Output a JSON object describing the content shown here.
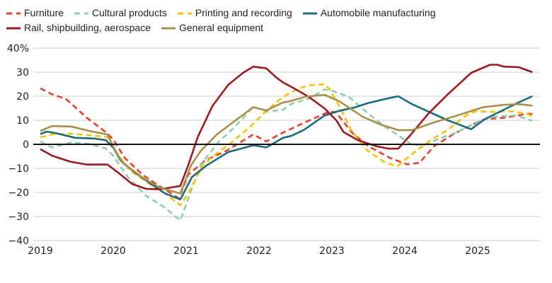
{
  "chart_data": {
    "type": "line",
    "title": "",
    "xlabel": "",
    "ylabel": "",
    "xlim": [
      2019,
      2025.85
    ],
    "ylim": [
      -40,
      40
    ],
    "grid": true,
    "legend_position": "top",
    "x_ticks": [
      "2019",
      "2020",
      "2021",
      "2022",
      "2023",
      "2024",
      "2025"
    ],
    "y_ticks": [
      {
        "value": 40,
        "label": "40%"
      },
      {
        "value": 30,
        "label": "30"
      },
      {
        "value": 20,
        "label": "20"
      },
      {
        "value": 10,
        "label": "10"
      },
      {
        "value": 0,
        "label": "0"
      },
      {
        "value": -10,
        "label": "−10"
      },
      {
        "value": -20,
        "label": "−20"
      },
      {
        "value": -30,
        "label": "−30"
      },
      {
        "value": -40,
        "label": "−40"
      }
    ],
    "series": [
      {
        "name": "Furniture",
        "color": "#e8412f",
        "style": "dashed",
        "x": [
          2019.0,
          2019.16,
          2019.35,
          2019.64,
          2019.9,
          2020.0,
          2020.16,
          2020.4,
          2020.64,
          2020.9,
          2021.03,
          2021.26,
          2021.55,
          2021.92,
          2022.1,
          2022.33,
          2022.62,
          2022.95,
          2023.05,
          2023.27,
          2023.5,
          2023.8,
          2024.03,
          2024.2,
          2024.4,
          2024.66,
          2024.91,
          2025.1,
          2025.36,
          2025.69,
          2025.75
        ],
        "y": [
          23.3,
          20.8,
          18.9,
          11,
          5,
          2,
          -5.7,
          -12.6,
          -17.5,
          -22.4,
          -12.6,
          -6.7,
          -2.75,
          4.1,
          1.2,
          4.9,
          9,
          13.4,
          13.5,
          5.1,
          -0.8,
          -5.7,
          -8.3,
          -7.7,
          -0.8,
          4.1,
          8,
          10.5,
          11,
          12.7,
          12.6
        ]
      },
      {
        "name": "Cultural products",
        "color": "#8fcdb0",
        "style": "dashed",
        "x": [
          2019.0,
          2019.16,
          2019.42,
          2019.67,
          2019.9,
          2020.0,
          2020.2,
          2020.45,
          2020.71,
          2020.92,
          2021.03,
          2021.2,
          2021.42,
          2021.68,
          2021.92,
          2022.1,
          2022.33,
          2022.45,
          2022.68,
          2022.9,
          2023.0,
          2023.23,
          2023.49,
          2023.74,
          2023.94,
          2024.1,
          2024.26,
          2024.46,
          2024.72,
          2024.97,
          2025.2,
          2025.52,
          2025.75
        ],
        "y": [
          1.2,
          -1.3,
          0.7,
          0.2,
          -1.8,
          -4.7,
          -13.6,
          -21.4,
          -26.3,
          -31.7,
          -22.4,
          -8.6,
          0.2,
          7.6,
          15.7,
          13.5,
          14.4,
          16.9,
          18.9,
          22.8,
          22.3,
          19.8,
          13,
          7.1,
          3.1,
          -0.3,
          -0.3,
          2.2,
          5.1,
          9,
          11.5,
          12,
          9.8
        ]
      },
      {
        "name": "Printing and recording",
        "color": "#f9c300",
        "style": "dashed",
        "x": [
          2019.0,
          2019.16,
          2019.42,
          2019.74,
          2019.92,
          2020.03,
          2020.22,
          2020.45,
          2020.71,
          2020.92,
          2021.03,
          2021.23,
          2021.42,
          2021.6,
          2021.87,
          2022.1,
          2022.33,
          2022.55,
          2022.71,
          2022.9,
          2022.97,
          2023.1,
          2023.26,
          2023.49,
          2023.74,
          2023.9,
          2024.07,
          2024.33,
          2024.59,
          2024.84,
          2024.97,
          2025.23,
          2025.49,
          2025.69,
          2025.75
        ],
        "y": [
          2.9,
          4.1,
          4.4,
          3.6,
          3.1,
          -2.8,
          -10.6,
          -15.5,
          -20.4,
          -25.3,
          -20.4,
          -8.6,
          -3.7,
          0.2,
          7.1,
          13.9,
          19.8,
          23.3,
          24.6,
          25,
          22.8,
          15.9,
          6.1,
          -2.75,
          -7.7,
          -9.1,
          -4.7,
          1.2,
          6.1,
          12,
          13.7,
          13.5,
          13.7,
          12.5,
          11.5
        ]
      },
      {
        "name": "Automobile manufacturing",
        "color": "#1b6a7e",
        "style": "solid",
        "x": [
          2019.0,
          2019.09,
          2019.22,
          2019.48,
          2019.74,
          2019.9,
          2020.0,
          2020.1,
          2020.29,
          2020.52,
          2020.71,
          2020.92,
          2021.08,
          2021.29,
          2021.58,
          2021.92,
          2022.1,
          2022.33,
          2022.45,
          2022.62,
          2022.9,
          2023.1,
          2023.32,
          2023.49,
          2023.74,
          2023.91,
          2024.1,
          2024.33,
          2024.59,
          2024.91,
          2025.1,
          2025.36,
          2025.56,
          2025.75
        ],
        "y": [
          4.3,
          5.3,
          4.6,
          2.7,
          2.4,
          1.7,
          -1.3,
          -6.7,
          -11.6,
          -16.5,
          -20.4,
          -22.9,
          -13.6,
          -8.6,
          -3.2,
          -0.4,
          -1.3,
          2.7,
          3.6,
          6.1,
          12,
          13.9,
          15.4,
          17.1,
          18.9,
          20,
          16.7,
          13.5,
          10,
          6.3,
          10.5,
          14.4,
          17.4,
          20
        ]
      },
      {
        "name": "Rail, shipbuilding, aerospace",
        "color": "#9b1b1f",
        "style": "solid",
        "x": [
          2019.0,
          2019.16,
          2019.41,
          2019.64,
          2019.92,
          2020.06,
          2020.26,
          2020.45,
          2020.64,
          2020.84,
          2020.92,
          2021.03,
          2021.16,
          2021.36,
          2021.58,
          2021.78,
          2021.92,
          2022.1,
          2022.24,
          2022.33,
          2022.45,
          2022.68,
          2022.9,
          2023.06,
          2023.16,
          2023.36,
          2023.61,
          2023.78,
          2023.91,
          2024.07,
          2024.33,
          2024.59,
          2024.91,
          2025.17,
          2025.27,
          2025.36,
          2025.56,
          2025.75
        ],
        "y": [
          -2,
          -4.7,
          -7.2,
          -8.4,
          -8.4,
          -11.6,
          -16.5,
          -18.5,
          -18.7,
          -17.7,
          -17.3,
          -8.6,
          3.1,
          15.9,
          24.8,
          29.7,
          32.3,
          31.6,
          27.7,
          25.7,
          23.8,
          19.8,
          14.9,
          10,
          5.1,
          1.7,
          -0.8,
          -1.8,
          -1.8,
          3.6,
          13,
          20.8,
          29.7,
          33.1,
          33.1,
          32.3,
          32.1,
          30
        ]
      },
      {
        "name": "General equipment",
        "color": "#a8904a",
        "style": "solid",
        "x": [
          2019.0,
          2019.16,
          2019.42,
          2019.67,
          2019.92,
          2020.03,
          2020.13,
          2020.39,
          2020.64,
          2020.92,
          2021.07,
          2021.2,
          2021.42,
          2021.68,
          2021.92,
          2022.1,
          2022.33,
          2022.42,
          2022.64,
          2022.9,
          2023.1,
          2023.42,
          2023.68,
          2023.91,
          2024.1,
          2024.39,
          2024.72,
          2025.07,
          2025.36,
          2025.56,
          2025.75
        ],
        "y": [
          5.6,
          7.6,
          7.4,
          5.6,
          4.1,
          -2.75,
          -7.7,
          -13.6,
          -18,
          -20.4,
          -8.6,
          -2.75,
          4.1,
          10,
          15.4,
          14.1,
          17.4,
          17.9,
          19.8,
          20.6,
          17.9,
          11.5,
          8.1,
          5.9,
          5.9,
          9,
          12,
          15.4,
          16.4,
          16.7,
          16.1
        ]
      }
    ]
  }
}
